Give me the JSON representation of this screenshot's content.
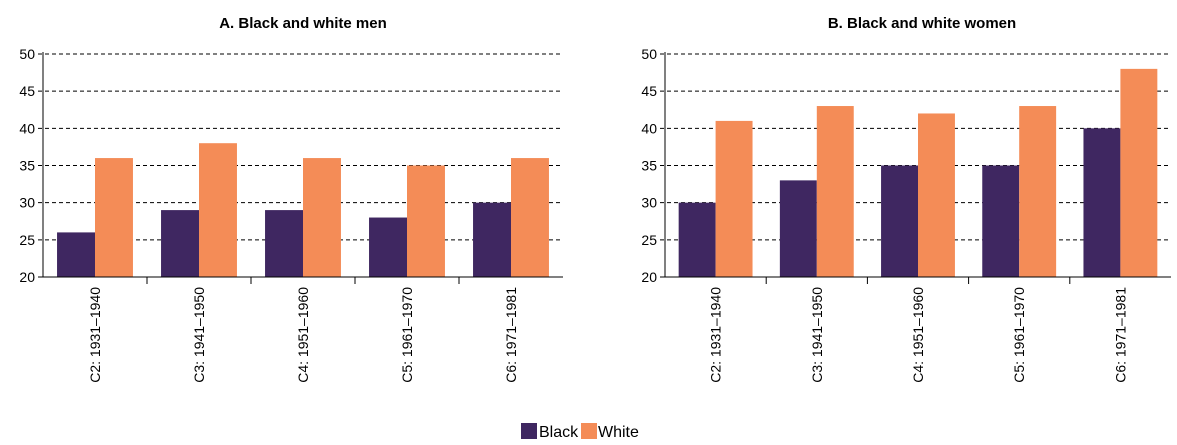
{
  "colors": {
    "black_series": "#3f2761",
    "white_series": "#f48c57"
  },
  "legend": [
    {
      "name": "Black",
      "color": "#3f2761"
    },
    {
      "name": "White",
      "color": "#f48c57"
    }
  ],
  "chart_data": [
    {
      "type": "bar",
      "title": "A. Black and white men",
      "categories": [
        "C2: 1931–1940",
        "C3: 1941–1950",
        "C4: 1951–1960",
        "C5: 1961–1970",
        "C6: 1971–1981"
      ],
      "series": [
        {
          "name": "Black",
          "values": [
            26,
            29,
            29,
            28,
            30
          ]
        },
        {
          "name": "White",
          "values": [
            36,
            38,
            36,
            35,
            36
          ]
        }
      ],
      "ylim": [
        20,
        50
      ],
      "yticks": [
        20,
        25,
        30,
        35,
        40,
        45,
        50
      ],
      "grid": "horizontal dashed",
      "legend_position": "bottom-center"
    },
    {
      "type": "bar",
      "title": "B. Black and white women",
      "categories": [
        "C2: 1931–1940",
        "C3: 1941–1950",
        "C4: 1951–1960",
        "C5: 1961–1970",
        "C6: 1971–1981"
      ],
      "series": [
        {
          "name": "Black",
          "values": [
            30,
            33,
            35,
            35,
            40
          ]
        },
        {
          "name": "White",
          "values": [
            41,
            43,
            42,
            43,
            48
          ]
        }
      ],
      "ylim": [
        20,
        50
      ],
      "yticks": [
        20,
        25,
        30,
        35,
        40,
        45,
        50
      ],
      "grid": "horizontal dashed",
      "legend_position": "bottom-center"
    }
  ]
}
